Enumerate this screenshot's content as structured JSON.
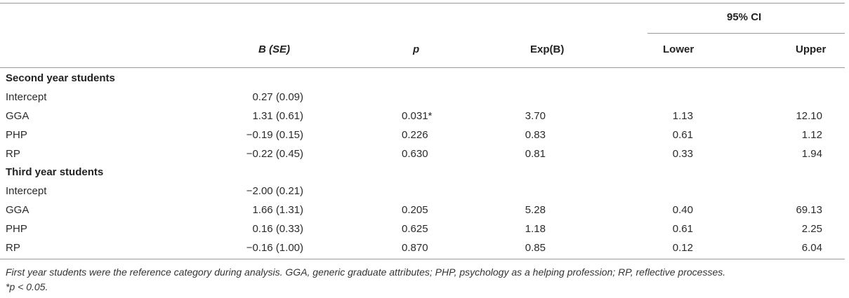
{
  "table": {
    "ci_group": "95% CI",
    "headers": {
      "b_se": "B (SE)",
      "p": "p",
      "expb": "Exp(B)",
      "lower": "Lower",
      "upper": "Upper"
    },
    "sections": [
      {
        "title": "Second year students",
        "rows": [
          {
            "label": "Intercept",
            "b_se": "0.27 (0.09)",
            "p": "",
            "expb": "",
            "lower": "",
            "upper": ""
          },
          {
            "label": "GGA",
            "b_se": "1.31 (0.61)",
            "p": "0.031*",
            "expb": "3.70",
            "lower": "1.13",
            "upper": "12.10"
          },
          {
            "label": "PHP",
            "b_se": "−0.19 (0.15)",
            "p": "0.226",
            "expb": "0.83",
            "lower": "0.61",
            "upper": "1.12"
          },
          {
            "label": "RP",
            "b_se": "−0.22 (0.45)",
            "p": "0.630",
            "expb": "0.81",
            "lower": "0.33",
            "upper": "1.94"
          }
        ]
      },
      {
        "title": "Third year students",
        "rows": [
          {
            "label": "Intercept",
            "b_se": "−2.00 (0.21)",
            "p": "",
            "expb": "",
            "lower": "",
            "upper": ""
          },
          {
            "label": "GGA",
            "b_se": "1.66 (1.31)",
            "p": "0.205",
            "expb": "5.28",
            "lower": "0.40",
            "upper": "69.13"
          },
          {
            "label": "PHP",
            "b_se": "0.16 (0.33)",
            "p": "0.625",
            "expb": "1.18",
            "lower": "0.61",
            "upper": "2.25"
          },
          {
            "label": "RP",
            "b_se": "−0.16 (1.00)",
            "p": "0.870",
            "expb": "0.85",
            "lower": "0.12",
            "upper": "6.04"
          }
        ]
      }
    ],
    "footnote_1": "First year students were the reference category during analysis. GGA, generic graduate attributes; PHP, psychology as a helping profession; RP, reflective processes.",
    "footnote_2": "*p < 0.05."
  }
}
